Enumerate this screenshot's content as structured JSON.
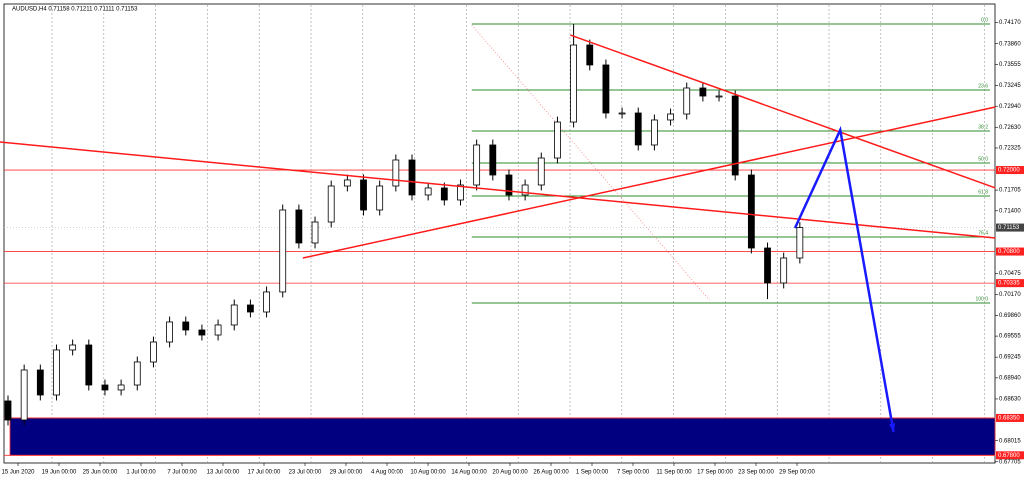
{
  "chart_data": {
    "type": "candlestick",
    "title": "AUDUSD,H4  0.71158 0.71211 0.71111 0.71153",
    "categories": [
      "15 Jun 2020",
      "19 Jun 00:00",
      "25 Jun 00:00",
      "1 Jul 00:00",
      "7 Jul 00:00",
      "13 Jul 00:00",
      "17 Jul 00:00",
      "23 Jul 00:00",
      "29 Jul 00:00",
      "4 Aug 00:00",
      "10 Aug 00:00",
      "14 Aug 00:00",
      "20 Aug 00:00",
      "26 Aug 00:00",
      "1 Sep 00:00",
      "7 Sep 00:00",
      "11 Sep 00:00",
      "17 Sep 00:00",
      "23 Sep 00:00",
      "29 Sep 00:00"
    ],
    "open": [
      0.686,
      0.6832,
      0.69056,
      0.68688,
      0.69351,
      0.69424,
      0.68835,
      0.68762,
      0.68835,
      0.69174,
      0.69468,
      0.69763,
      0.69645,
      0.69571,
      0.69719,
      0.70013,
      0.6991,
      0.70205,
      0.71412,
      0.70926,
      0.71235,
      0.71765,
      0.71854,
      0.71412,
      0.71765,
      0.72148,
      0.71633,
      0.71736,
      0.71559,
      0.7178,
      0.72369,
      0.71927,
      0.71633,
      0.7178,
      0.72177,
      0.72707,
      0.73841,
      0.73547,
      0.7284,
      0.7284,
      0.72369,
      0.72737,
      0.72825,
      0.73208,
      0.7309,
      0.7309,
      0.71927,
      0.70852,
      0.70337,
      0.70705
    ],
    "high": [
      0.6868,
      0.69136,
      0.69136,
      0.69431,
      0.69504,
      0.69504,
      0.68915,
      0.68915,
      0.69254,
      0.69548,
      0.69843,
      0.69843,
      0.69725,
      0.69799,
      0.70093,
      0.70093,
      0.70285,
      0.71492,
      0.71492,
      0.71315,
      0.71845,
      0.71934,
      0.71934,
      0.71845,
      0.72228,
      0.72228,
      0.71816,
      0.71816,
      0.7186,
      0.72449,
      0.72449,
      0.72007,
      0.7186,
      0.72257,
      0.72787,
      0.7415,
      0.73921,
      0.73627,
      0.7292,
      0.7292,
      0.72817,
      0.72905,
      0.73288,
      0.73288,
      0.7317,
      0.7317,
      0.72007,
      0.70932,
      0.70785,
      0.71233
    ],
    "low": [
      0.6824,
      0.6824,
      0.68608,
      0.68608,
      0.69271,
      0.68755,
      0.68682,
      0.68682,
      0.68755,
      0.69094,
      0.69388,
      0.69565,
      0.69491,
      0.69491,
      0.69639,
      0.6983,
      0.6983,
      0.70125,
      0.70846,
      0.70846,
      0.71155,
      0.71685,
      0.71332,
      0.71332,
      0.71685,
      0.71553,
      0.71553,
      0.71479,
      0.71479,
      0.717,
      0.71847,
      0.71553,
      0.71553,
      0.717,
      0.72097,
      0.72627,
      0.73467,
      0.7276,
      0.7276,
      0.72289,
      0.72289,
      0.72657,
      0.72745,
      0.7301,
      0.7301,
      0.71847,
      0.70772,
      0.701,
      0.70257,
      0.70625
    ],
    "close": [
      0.6832,
      0.69056,
      0.68688,
      0.69351,
      0.69424,
      0.68835,
      0.68762,
      0.68835,
      0.69174,
      0.69468,
      0.69763,
      0.69645,
      0.69571,
      0.69719,
      0.70013,
      0.6991,
      0.70205,
      0.71412,
      0.70926,
      0.71235,
      0.71765,
      0.71854,
      0.71412,
      0.71765,
      0.72148,
      0.71633,
      0.71736,
      0.71559,
      0.7178,
      0.72369,
      0.71927,
      0.71633,
      0.7178,
      0.72177,
      0.72707,
      0.73841,
      0.73547,
      0.7284,
      0.7284,
      0.72369,
      0.72737,
      0.72825,
      0.73208,
      0.7309,
      0.7309,
      0.71927,
      0.70852,
      0.70337,
      0.70705,
      0.71153
    ],
    "ylim": [
      0.6751,
      0.7443
    ],
    "yticks": [
      {
        "value": 0.7417,
        "label": "0.74170"
      },
      {
        "value": 0.7386,
        "label": "0.73860"
      },
      0.73555,
      0.73245,
      {
        "value": 0.7294,
        "label": "0.72940"
      },
      {
        "value": 0.7263,
        "label": "0.72630"
      },
      0.72325,
      0.71705,
      {
        "value": 0.714,
        "label": "0.71400"
      },
      0.70475,
      {
        "value": 0.7017,
        "label": "0.70170"
      },
      {
        "value": 0.6986,
        "label": "0.69860"
      },
      0.69555,
      0.69245,
      {
        "value": 0.6894,
        "label": "0.68940"
      },
      {
        "value": 0.6863,
        "label": "0.68630"
      },
      0.68015,
      0.67705
    ],
    "current": {
      "value": 0.71153,
      "label": "0.71153"
    },
    "levels": [
      {
        "value": 0.72,
        "label": "0.72000"
      },
      {
        "value": 0.708,
        "label": "0.70800"
      },
      {
        "value": 0.70335,
        "label": "0.70335"
      },
      {
        "value": 0.6835,
        "label": "0.68350"
      },
      {
        "value": 0.678,
        "label": "0.67800"
      }
    ],
    "zone": [
      0.6835,
      0.678
    ],
    "fib": {
      "levels": [
        "0.0",
        "23.6",
        "38.2",
        "50.0",
        "61.8",
        "76.4",
        "100.0"
      ],
      "values": [
        0.7415,
        0.73179,
        0.72575,
        0.72104,
        0.71618,
        0.71014,
        0.70042
      ],
      "start": 28.7
    },
    "trend_lines": [
      {
        "x": [
          -0.5,
          61.1
        ],
        "y": [
          0.72413,
          0.70999
        ]
      },
      {
        "x": [
          18.25,
          61.1
        ],
        "y": [
          0.70705,
          0.72928
        ]
      },
      {
        "x": [
          34.8,
          61.1
        ],
        "y": [
          0.73988,
          0.71736
        ]
      }
    ],
    "dotted_line": {
      "x": [
        28.7,
        43.4
      ],
      "y": [
        0.74136,
        0.70087
      ]
    },
    "arrow": {
      "x": [
        48.7,
        51.5,
        54.8
      ],
      "y": [
        0.71147,
        0.7259,
        0.68143
      ]
    }
  }
}
